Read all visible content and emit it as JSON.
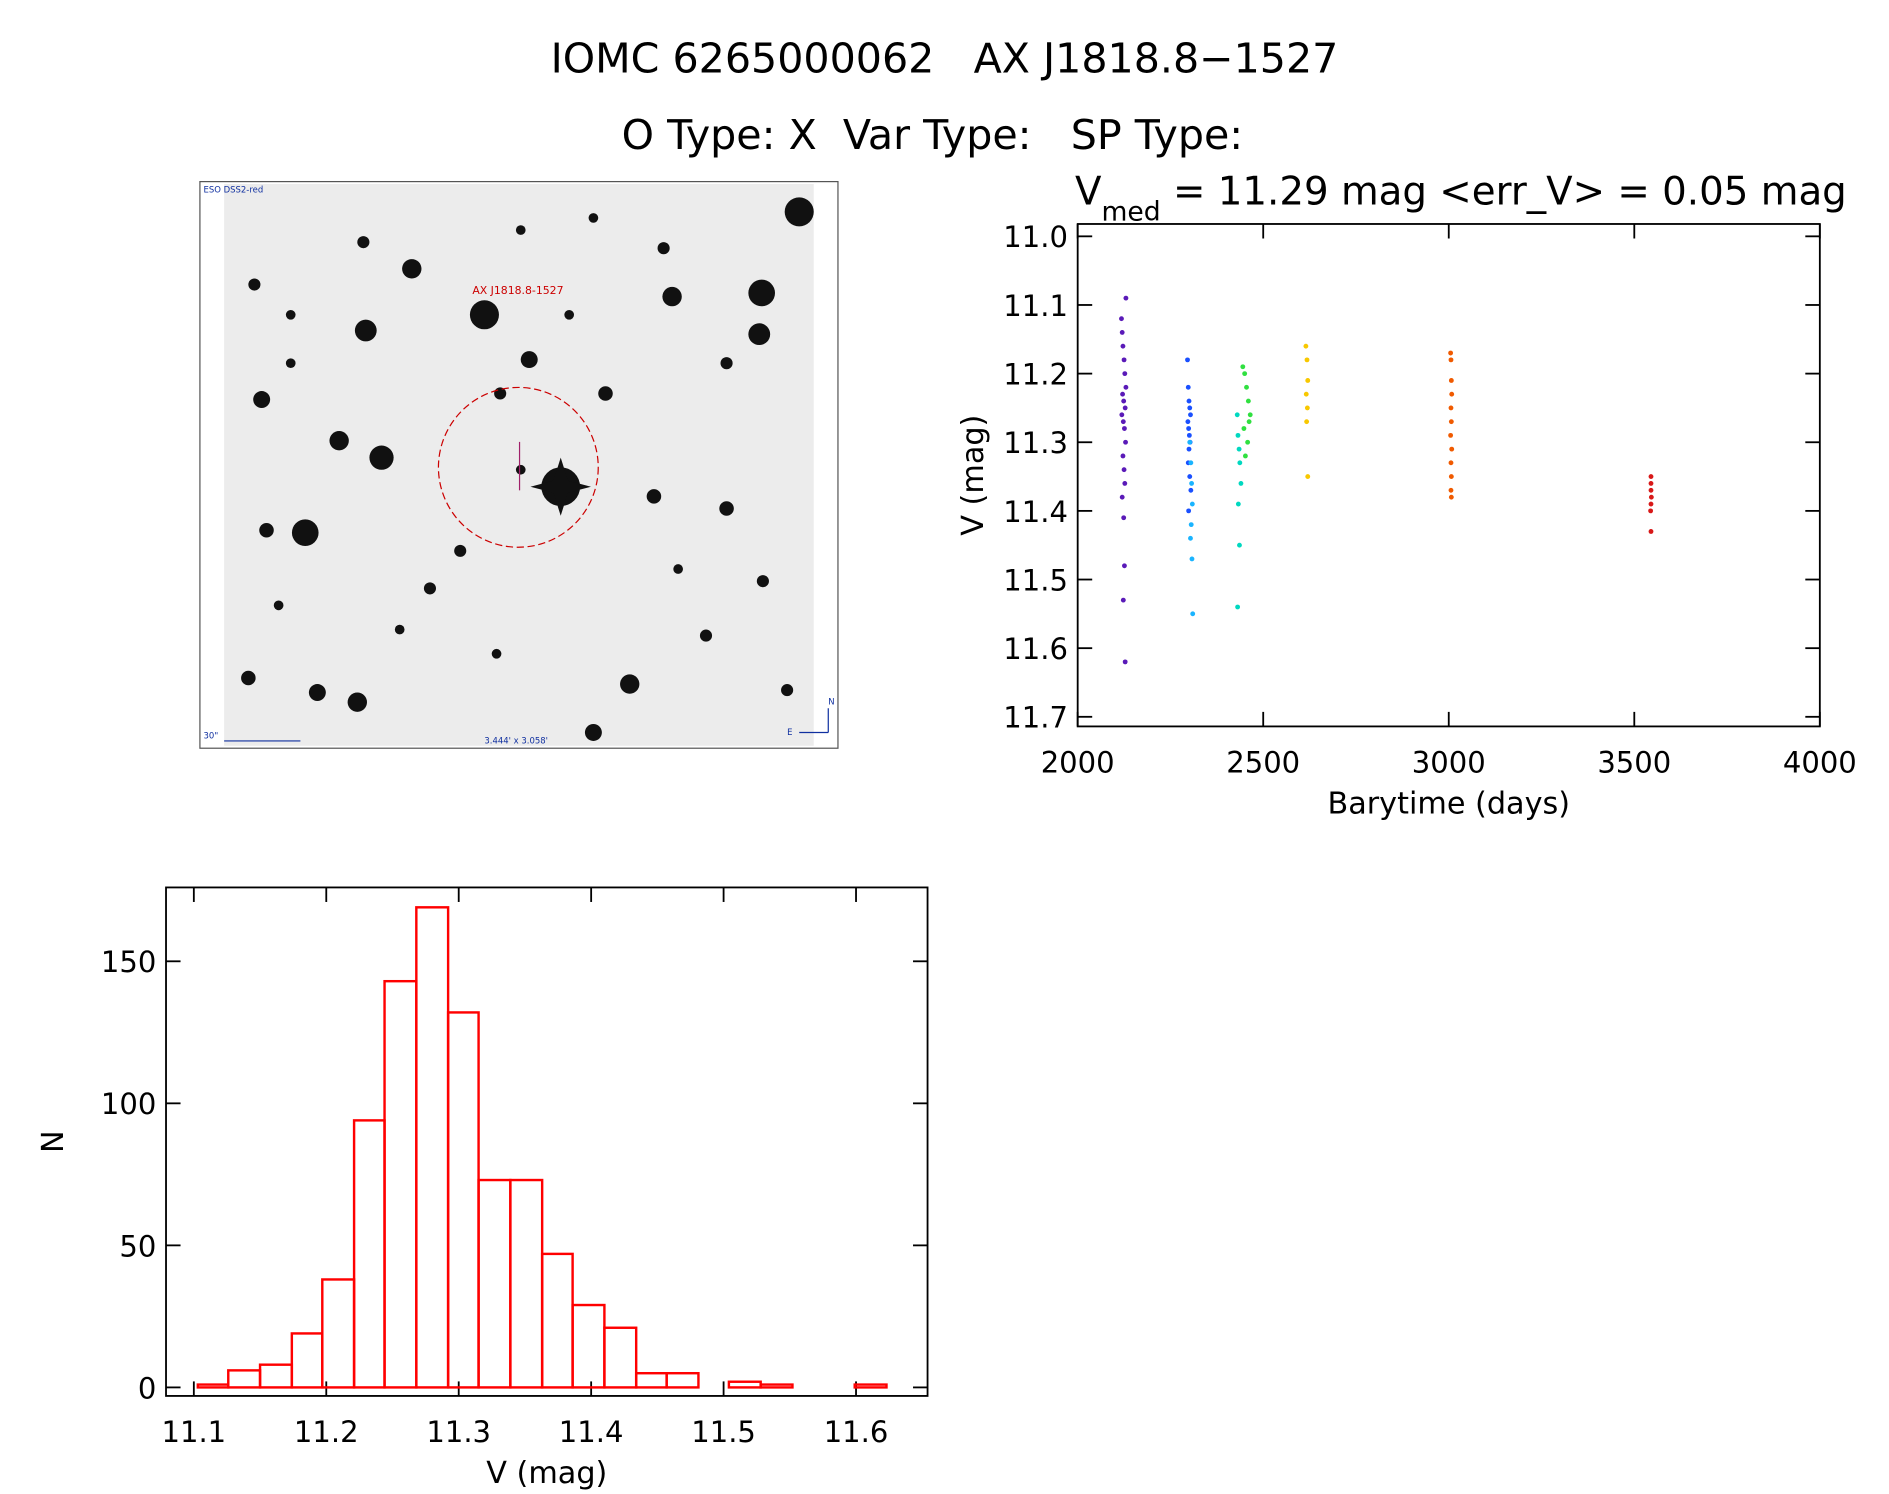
{
  "title": "IOMC 6265000062   AX J1818.8−1527",
  "subtitle": "O Type: X  Var Type:   SP Type:",
  "image": {
    "survey": "ESO DSS2-red",
    "target": "AX J1818.8-1527",
    "scale": "30\"",
    "size": "3.444' x 3.058'",
    "north": "N",
    "east": "E"
  },
  "chart_data": [
    {
      "type": "scatter",
      "title": [
        "V",
        "med",
        " = 11.29 mag <err_V> = 0.05 mag"
      ],
      "xlabel": "Barytime (days)",
      "ylabel": "V (mag)",
      "xlim": [
        2000,
        4000
      ],
      "xticks": [
        2000,
        2500,
        3000,
        3500,
        4000
      ],
      "ylim": [
        10.982,
        11.714
      ],
      "y_reversed": true,
      "yticks": [
        {
          "value": 11.0,
          "label": "11.0"
        },
        11.1,
        11.2,
        11.3,
        11.4,
        11.5,
        11.6,
        11.7
      ],
      "series": [
        {
          "color": "#5a1ab8",
          "x": [
            2130,
            2118,
            2120,
            2122,
            2125,
            2127,
            2130,
            2121,
            2124,
            2128,
            2119,
            2123,
            2126,
            2129,
            2122,
            2125,
            2127,
            2120,
            2124,
            2126,
            2123,
            2128
          ],
          "values": [
            11.09,
            11.12,
            11.14,
            11.16,
            11.18,
            11.2,
            11.22,
            11.23,
            11.24,
            11.25,
            11.26,
            11.27,
            11.28,
            11.3,
            11.32,
            11.34,
            11.36,
            11.38,
            11.41,
            11.48,
            11.53,
            11.62
          ]
        },
        {
          "color": "#1a50ff",
          "x": [
            2296,
            2298,
            2300,
            2302,
            2304,
            2297,
            2299,
            2301,
            2303,
            2300,
            2298,
            2302,
            2305,
            2299
          ],
          "values": [
            11.18,
            11.22,
            11.24,
            11.25,
            11.26,
            11.27,
            11.28,
            11.29,
            11.3,
            11.31,
            11.33,
            11.35,
            11.37,
            11.4
          ]
        },
        {
          "color": "#1ab4ff",
          "x": [
            2302,
            2305,
            2307,
            2309,
            2306,
            2304,
            2308,
            2310
          ],
          "values": [
            11.3,
            11.33,
            11.36,
            11.39,
            11.42,
            11.44,
            11.47,
            11.55
          ]
        },
        {
          "color": "#00d8c0",
          "x": [
            2430,
            2432,
            2435,
            2437,
            2440,
            2433,
            2436,
            2431
          ],
          "values": [
            11.26,
            11.29,
            11.31,
            11.33,
            11.36,
            11.39,
            11.45,
            11.54
          ]
        },
        {
          "color": "#30e040",
          "x": [
            2445,
            2450,
            2455,
            2460,
            2465,
            2448,
            2458,
            2452,
            2462
          ],
          "values": [
            11.19,
            11.2,
            11.22,
            11.24,
            11.26,
            11.28,
            11.3,
            11.32,
            11.27
          ]
        },
        {
          "color": "#f8c800",
          "x": [
            2615,
            2618,
            2620,
            2616,
            2619,
            2617,
            2620
          ],
          "values": [
            11.16,
            11.18,
            11.21,
            11.23,
            11.25,
            11.27,
            11.35
          ]
        },
        {
          "color": "#f05a00",
          "x": [
            3005,
            3006,
            3007,
            3008,
            3006,
            3007,
            3005,
            3008,
            3006,
            3007,
            3006,
            3007
          ],
          "values": [
            11.17,
            11.18,
            11.21,
            11.23,
            11.25,
            11.27,
            11.29,
            11.31,
            11.33,
            11.35,
            11.37,
            11.38
          ]
        },
        {
          "color": "#d81818",
          "x": [
            3545,
            3545,
            3545,
            3546,
            3545,
            3544,
            3545
          ],
          "values": [
            11.35,
            11.36,
            11.37,
            11.38,
            11.39,
            11.4,
            11.43
          ]
        }
      ]
    },
    {
      "type": "histogram",
      "xlabel": "V (mag)",
      "ylabel": "N",
      "color": "#ff0000",
      "xlim": [
        11.079,
        11.654
      ],
      "xticks": [
        11.1,
        11.2,
        11.3,
        11.4,
        11.5,
        11.6
      ],
      "ylim": [
        -3,
        176
      ],
      "yticks": [
        0,
        50,
        100,
        150
      ],
      "bins": [
        11.103,
        11.126,
        11.15,
        11.174,
        11.197,
        11.221,
        11.244,
        11.268,
        11.292,
        11.315,
        11.339,
        11.363,
        11.386,
        11.41,
        11.434,
        11.457,
        11.481,
        11.504,
        11.528,
        11.552,
        11.575,
        11.599,
        11.623
      ],
      "values": [
        1,
        6,
        8,
        19,
        38,
        94,
        143,
        169,
        132,
        73,
        73,
        47,
        29,
        21,
        5,
        5,
        0,
        2,
        1,
        0,
        0,
        1
      ]
    }
  ]
}
